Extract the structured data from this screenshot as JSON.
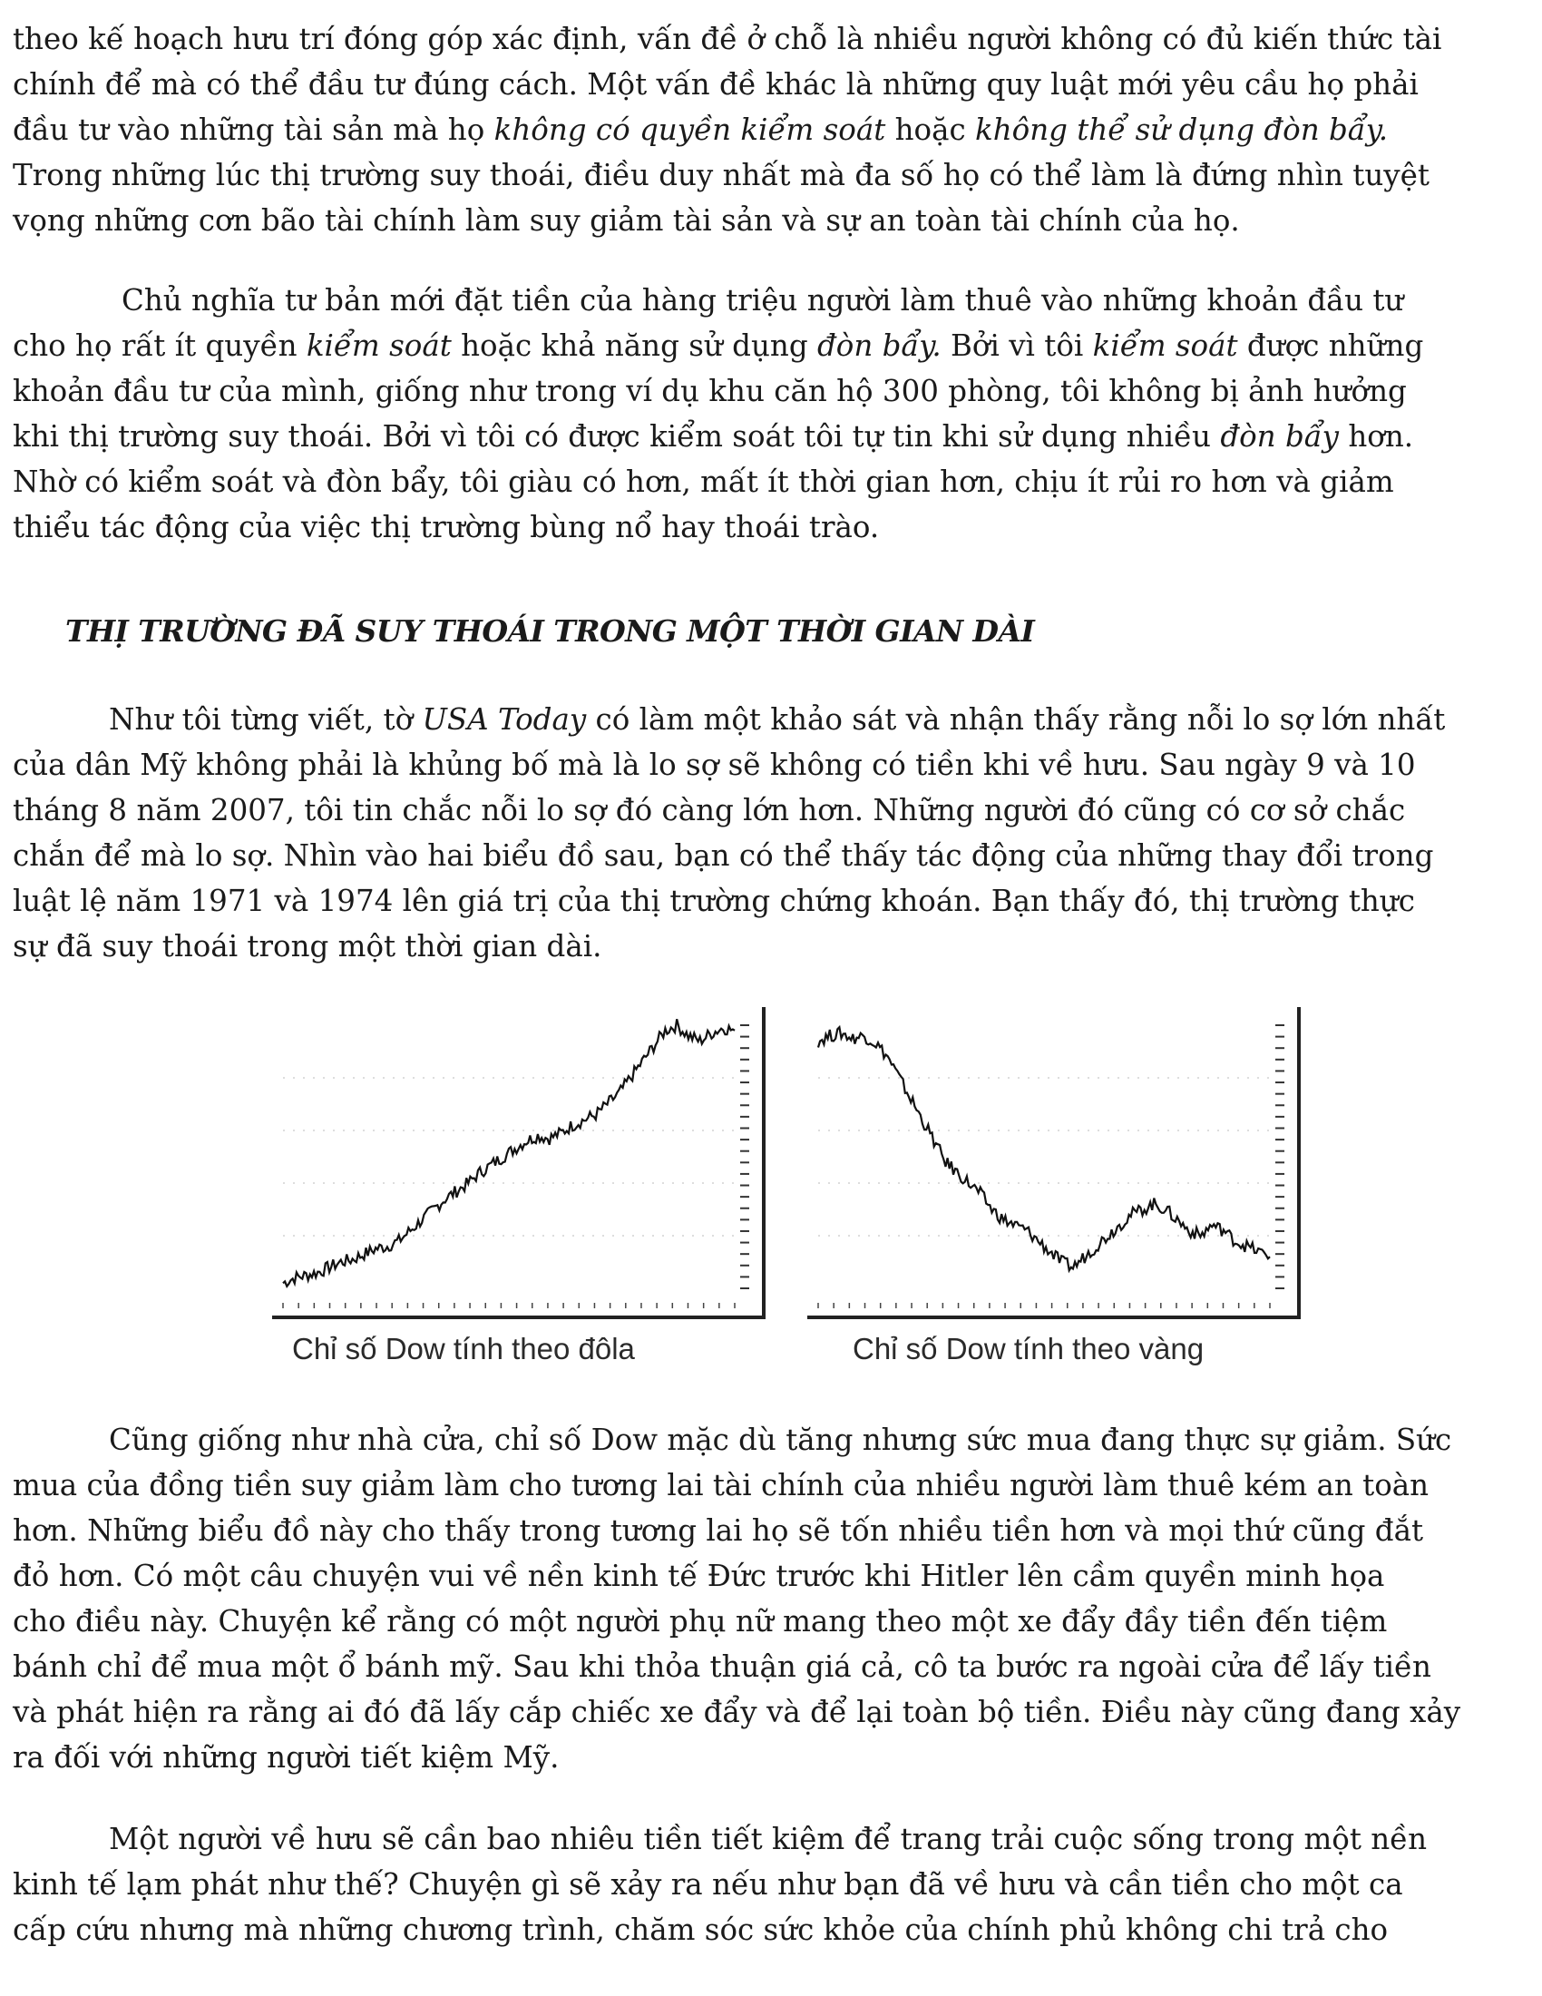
{
  "para1": {
    "lines": [
      "theo kế hoạch hưu trí đóng góp xác định, vấn đề ở chỗ là nhiều người không có đủ kiến thức tài",
      "chính để mà có thể đầu tư đúng cách. Một vấn đề khác là những quy luật mới yêu cầu họ phải",
      "Trong những lúc thị trường suy thoái, điều duy nhất mà đa số họ có thể làm là đứng nhìn tuyệt",
      "vọng những cơn bão tài chính làm suy giảm tài sản và sự an toàn tài chính của họ."
    ],
    "l3a": "đầu tư vào những tài sản mà họ ",
    "l3b": "không có quyền kiểm soát",
    "l3c": " hoặc ",
    "l3d": "không thể sử dụng đòn bẩy."
  },
  "para2": {
    "l1": "Chủ nghĩa tư bản mới đặt tiền của hàng triệu người làm thuê vào những khoản đầu tư",
    "l2a": "cho họ rất ít quyền ",
    "l2b": "kiểm soát",
    "l2c": " hoặc khả năng sử dụng ",
    "l2d": "đòn bẩy.",
    "l2e": " Bởi vì tôi ",
    "l2f": "kiểm soát",
    "l2g": " được những",
    "l3": "khoản đầu tư của mình, giống như trong ví dụ khu căn hộ 300 phòng, tôi không bị ảnh hưởng",
    "l4a": "khi thị trường suy thoái. Bởi vì tôi có được kiểm soát tôi tự tin khi sử dụng nhiều ",
    "l4b": "đòn bẩy",
    "l4c": " hơn.",
    "l5": "Nhờ có kiểm soát và đòn bẩy, tôi giàu có hơn, mất ít thời gian hơn, chịu ít rủi ro hơn và giảm",
    "l6": "thiểu tác động của việc thị trường bùng nổ hay thoái trào."
  },
  "heading": "THỊ TRƯỜNG ĐÃ SUY THOÁI TRONG MỘT THỜI GIAN DÀI",
  "para3": {
    "l1a": "Như tôi từng viết, tờ ",
    "l1b": "USA Today",
    "l1c": " có làm một khảo sát và nhận thấy rằng nỗi lo sợ lớn nhất",
    "lines": [
      "của dân Mỹ không phải là khủng bố mà là lo sợ sẽ không có tiền khi về hưu. Sau ngày 9 và 10",
      "tháng 8 năm 2007, tôi tin chắc nỗi lo sợ đó càng lớn hơn. Những người đó cũng có cơ sở chắc",
      "chắn để mà lo sợ. Nhìn vào hai biểu đồ sau, bạn có thể thấy tác động của những thay đổi trong",
      "luật lệ năm 1971 và 1974 lên giá trị của thị trường chứng khoán. Bạn thấy đó, thị trường thực",
      "sự đã suy thoái trong một thời gian dài."
    ]
  },
  "chart_data": [
    {
      "type": "line",
      "title": "Chỉ số Dow tính theo đôla",
      "series": [
        {
          "values": [
            2,
            4,
            5,
            6,
            8,
            10,
            11,
            13,
            15,
            16,
            18,
            22,
            26,
            30,
            34,
            37,
            40,
            44,
            47,
            50,
            53,
            56,
            58,
            57,
            59,
            62,
            64,
            66,
            70,
            74,
            80,
            86,
            92,
            98,
            100,
            96,
            94,
            97,
            99,
            98
          ]
        }
      ],
      "trend": "rising"
    },
    {
      "type": "line",
      "title": "Chỉ số Dow tính theo vàng",
      "series": [
        {
          "values": [
            94,
            96,
            97,
            95,
            96,
            93,
            88,
            80,
            72,
            64,
            56,
            48,
            44,
            40,
            36,
            30,
            26,
            24,
            22,
            18,
            14,
            10,
            8,
            12,
            16,
            20,
            24,
            28,
            30,
            32,
            30,
            26,
            22,
            20,
            24,
            22,
            18,
            16,
            14,
            12
          ]
        }
      ],
      "trend": "falling"
    }
  ],
  "captions": {
    "left": "Chỉ số Dow tính theo đôla",
    "right": "Chỉ số Dow tính theo vàng"
  },
  "para4": {
    "lines": [
      "Cũng giống như nhà cửa, chỉ số Dow mặc dù tăng nhưng sức mua đang thực sự giảm. Sức",
      "mua của đồng tiền suy giảm làm cho tương lai tài chính của nhiều người làm thuê kém an toàn",
      "hơn. Những biểu đồ này cho thấy trong tương lai họ sẽ tốn nhiều tiền hơn và mọi thứ cũng đắt",
      "đỏ hơn. Có một câu chuyện vui về nền kinh tế Đức trước khi Hitler lên cầm quyền minh họa",
      "cho điều này. Chuyện kể rằng có một người phụ nữ mang theo một xe đẩy đầy tiền đến tiệm",
      "bánh chỉ để mua một ổ bánh mỹ. Sau khi thỏa thuận giá cả, cô ta bước ra ngoài cửa để lấy tiền",
      "và phát hiện ra rằng ai đó đã lấy cắp chiếc xe đẩy và để lại toàn bộ tiền. Điều này cũng đang xảy",
      "ra đối với những người tiết kiệm Mỹ."
    ]
  },
  "para5": {
    "lines": [
      "Một người về hưu sẽ cần bao nhiêu tiền tiết kiệm để trang trải cuộc sống trong một nền",
      "kinh tế lạm phát như thế? Chuyện gì sẽ xảy ra nếu như bạn đã về hưu và cần tiền cho một ca",
      "cấp cứu nhưng mà những chương trình, chăm sóc sức khỏe của chính phủ không chi trả cho"
    ]
  }
}
